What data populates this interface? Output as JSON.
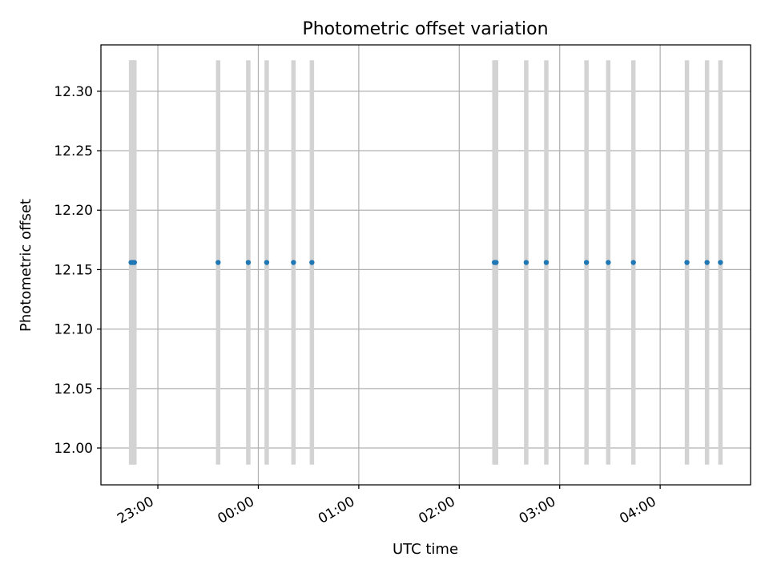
{
  "chart_data": {
    "type": "scatter",
    "title": "Photometric offset variation",
    "xlabel": "UTC time",
    "ylabel": "Photometric offset",
    "x_type": "time",
    "x_reference_date": "2000-01-01",
    "xlim": [
      "2000-01-01T22:26:00",
      "2000-01-02T04:54:00"
    ],
    "ylim": [
      11.969,
      12.339
    ],
    "grid": true,
    "colors": {
      "points": "#1f77b4",
      "error_bars": "#d3d3d3",
      "grid": "#b0b0b0"
    },
    "x_ticks": [
      {
        "time": "2000-01-01T23:00:00",
        "label": "23:00"
      },
      {
        "time": "2000-01-02T00:00:00",
        "label": "00:00"
      },
      {
        "time": "2000-01-02T01:00:00",
        "label": "01:00"
      },
      {
        "time": "2000-01-02T02:00:00",
        "label": "02:00"
      },
      {
        "time": "2000-01-02T03:00:00",
        "label": "03:00"
      },
      {
        "time": "2000-01-02T04:00:00",
        "label": "04:00"
      }
    ],
    "y_ticks": [
      {
        "value": 12.0,
        "label": "12.00"
      },
      {
        "value": 12.05,
        "label": "12.05"
      },
      {
        "value": 12.1,
        "label": "12.10"
      },
      {
        "value": 12.15,
        "label": "12.15"
      },
      {
        "value": 12.2,
        "label": "12.20"
      },
      {
        "value": 12.25,
        "label": "12.25"
      },
      {
        "value": 12.3,
        "label": "12.30"
      }
    ],
    "points": [
      {
        "x": "2000-01-01T22:44:00",
        "y": 12.156,
        "yerr": 0.17
      },
      {
        "x": "2000-01-01T22:45:00",
        "y": 12.156,
        "yerr": 0.17
      },
      {
        "x": "2000-01-01T22:46:00",
        "y": 12.156,
        "yerr": 0.17
      },
      {
        "x": "2000-01-01T23:36:00",
        "y": 12.156,
        "yerr": 0.17
      },
      {
        "x": "2000-01-01T23:54:00",
        "y": 12.156,
        "yerr": 0.17
      },
      {
        "x": "2000-01-02T00:05:00",
        "y": 12.156,
        "yerr": 0.17
      },
      {
        "x": "2000-01-02T00:21:00",
        "y": 12.156,
        "yerr": 0.17
      },
      {
        "x": "2000-01-02T00:32:00",
        "y": 12.156,
        "yerr": 0.17
      },
      {
        "x": "2000-01-02T02:21:00",
        "y": 12.156,
        "yerr": 0.17
      },
      {
        "x": "2000-01-02T02:22:00",
        "y": 12.156,
        "yerr": 0.17
      },
      {
        "x": "2000-01-02T02:40:00",
        "y": 12.156,
        "yerr": 0.17
      },
      {
        "x": "2000-01-02T02:52:00",
        "y": 12.156,
        "yerr": 0.17
      },
      {
        "x": "2000-01-02T03:16:00",
        "y": 12.156,
        "yerr": 0.17
      },
      {
        "x": "2000-01-02T03:29:00",
        "y": 12.156,
        "yerr": 0.17
      },
      {
        "x": "2000-01-02T03:44:00",
        "y": 12.156,
        "yerr": 0.17
      },
      {
        "x": "2000-01-02T04:16:00",
        "y": 12.156,
        "yerr": 0.17
      },
      {
        "x": "2000-01-02T04:28:00",
        "y": 12.156,
        "yerr": 0.17
      },
      {
        "x": "2000-01-02T04:36:00",
        "y": 12.156,
        "yerr": 0.17
      }
    ]
  }
}
